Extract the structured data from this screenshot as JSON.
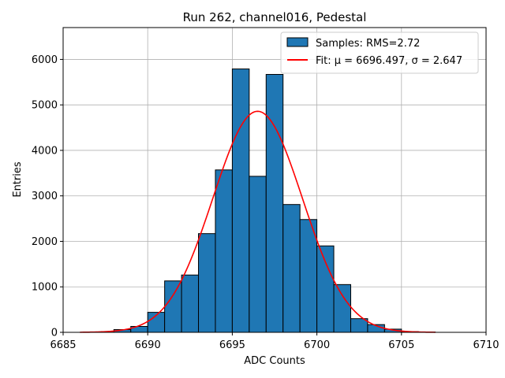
{
  "chart_data": {
    "type": "bar",
    "title": "Run 262, channel016, Pedestal",
    "xlabel": "ADC Counts",
    "ylabel": "Entries",
    "xlim": [
      6685,
      6710
    ],
    "ylim": [
      0,
      6700
    ],
    "xticks": [
      6685,
      6690,
      6695,
      6700,
      6705,
      6710
    ],
    "xtick_labels": [
      "6685",
      "6690",
      "6695",
      "6700",
      "6705",
      "6710"
    ],
    "yticks": [
      0,
      1000,
      2000,
      3000,
      4000,
      5000,
      6000
    ],
    "ytick_labels": [
      "0",
      "1000",
      "2000",
      "3000",
      "4000",
      "5000",
      "6000"
    ],
    "grid": true,
    "legend_position": "top-right",
    "bar_color": "#1f77b4",
    "bar_edge_color": "#000000",
    "fit_color": "#ff0000",
    "histogram": {
      "name": "Samples: RMS=2.72",
      "bin_edges": [
        6687.0,
        6688.0,
        6689.0,
        6690.0,
        6691.0,
        6692.0,
        6693.0,
        6694.0,
        6695.0,
        6696.0,
        6697.0,
        6698.0,
        6699.0,
        6700.0,
        6701.0,
        6702.0,
        6703.0,
        6704.0,
        6705.0,
        6706.0,
        6707.0
      ],
      "counts": [
        5,
        60,
        130,
        440,
        1130,
        1260,
        2170,
        3570,
        5790,
        3430,
        5670,
        2810,
        2480,
        1900,
        1050,
        300,
        170,
        70,
        15,
        5
      ]
    },
    "fit": {
      "name": "Fit: μ = 6696.497, σ = 2.647",
      "mu": 6696.497,
      "sigma": 2.647,
      "amplitude": 4860,
      "x_range": [
        6686,
        6707
      ]
    },
    "legend": [
      {
        "label": "Samples: RMS=2.72",
        "kind": "patch"
      },
      {
        "label": "Fit: μ = 6696.497, σ = 2.647",
        "kind": "line"
      }
    ]
  }
}
